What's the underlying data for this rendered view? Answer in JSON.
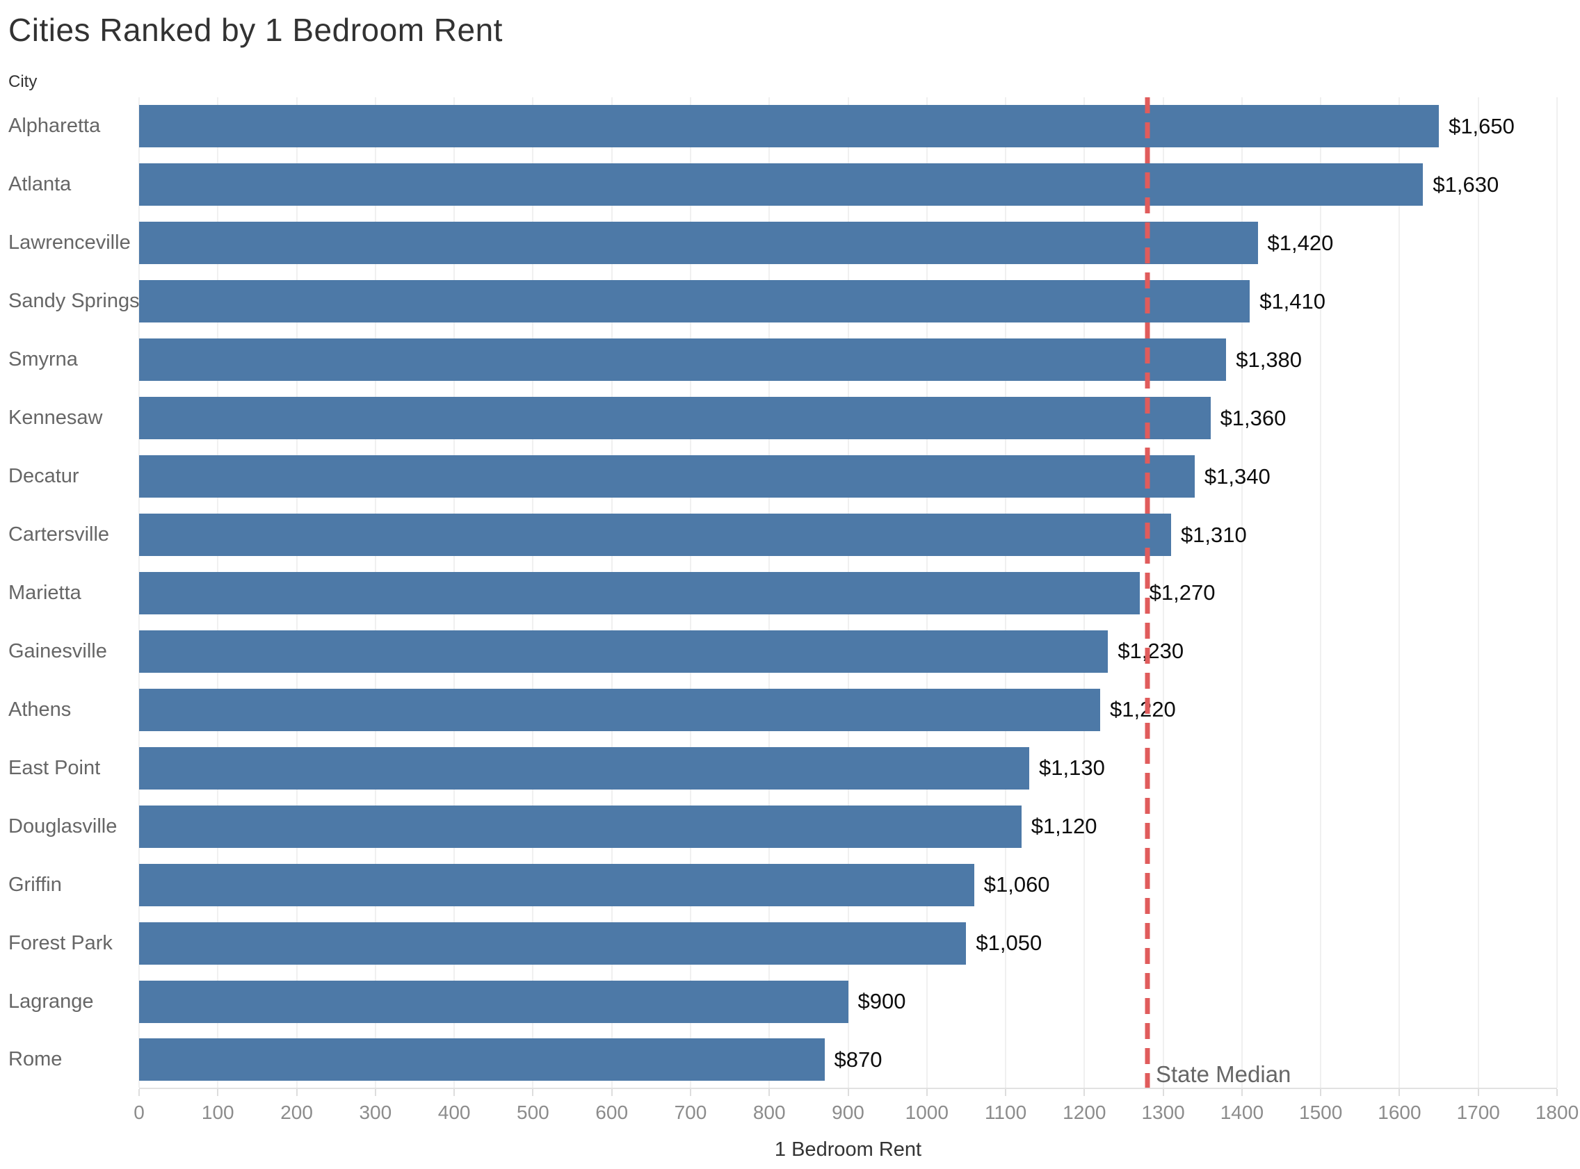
{
  "title": "Cities Ranked by 1 Bedroom Rent",
  "column_header": "City",
  "axis": {
    "label": "1 Bedroom Rent"
  },
  "reference": {
    "label": "State Median"
  },
  "colors": {
    "bar": "#4d79a7",
    "reference_line": "#e05c5c",
    "title_text": "#323232",
    "city_label_text": "#666666",
    "value_label_text": "#0d0d0d",
    "tick_label_text": "#8c8c8c",
    "gridline": "#f0f0f0"
  },
  "chart_data": {
    "type": "bar",
    "orientation": "horizontal",
    "title": "Cities Ranked by 1 Bedroom Rent",
    "xlabel": "1 Bedroom Rent",
    "ylabel": "City",
    "xlim": [
      0,
      1800
    ],
    "x_ticks": [
      0,
      100,
      200,
      300,
      400,
      500,
      600,
      700,
      800,
      900,
      1000,
      1100,
      1200,
      1300,
      1400,
      1500,
      1600,
      1700,
      1800
    ],
    "grid": true,
    "categories": [
      "Alpharetta",
      "Atlanta",
      "Lawrenceville",
      "Sandy Springs",
      "Smyrna",
      "Kennesaw",
      "Decatur",
      "Cartersville",
      "Marietta",
      "Gainesville",
      "Athens",
      "East Point",
      "Douglasville",
      "Griffin",
      "Forest Park",
      "Lagrange",
      "Rome"
    ],
    "values": [
      1650,
      1630,
      1420,
      1410,
      1380,
      1360,
      1340,
      1310,
      1270,
      1230,
      1220,
      1130,
      1120,
      1060,
      1050,
      900,
      870
    ],
    "value_labels": [
      "$1,650",
      "$1,630",
      "$1,420",
      "$1,410",
      "$1,380",
      "$1,360",
      "$1,340",
      "$1,310",
      "$1,270",
      "$1,230",
      "$1,220",
      "$1,130",
      "$1,120",
      "$1,060",
      "$1,050",
      "$900",
      "$870"
    ],
    "reference_line": {
      "label": "State Median",
      "value": 1280,
      "style": "dashed"
    },
    "legend": null
  }
}
